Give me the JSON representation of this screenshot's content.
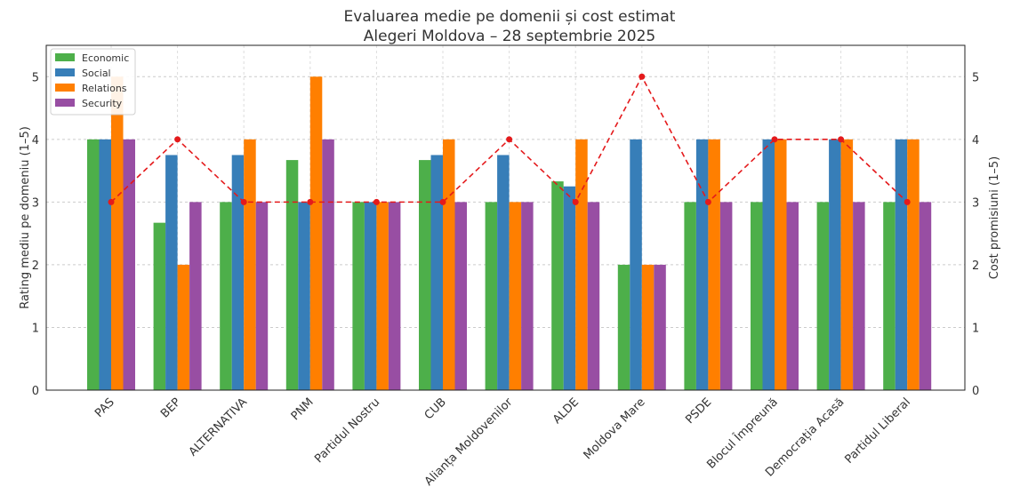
{
  "chart_data": {
    "type": "bar",
    "title": "Evaluarea medie pe domenii și cost estimat",
    "subtitle": "Alegeri Moldova – 28 septembrie 2025",
    "ylabel": "Rating mediu pe domeniu (1–5)",
    "y2label": "Cost promisiuni (1–5)",
    "ylim": [
      0,
      5.5
    ],
    "y2lim": [
      0,
      5.5
    ],
    "yticks": [
      "0",
      "1",
      "2",
      "3",
      "4",
      "5"
    ],
    "grid": true,
    "legend_position": "top-left",
    "categories": [
      "PAS",
      "BEP",
      "ALTERNATIVA",
      "PNM",
      "Partidul Nostru",
      "CUB",
      "Alianța Moldovenilor",
      "ALDE",
      "Moldova Mare",
      "PSDE",
      "Blocul Împreună",
      "Democrația Acasă",
      "Partidul Liberal"
    ],
    "series": [
      {
        "name": "Economic",
        "color": "#4daf4a",
        "values": [
          4,
          2.67,
          3,
          3.67,
          3,
          3.67,
          3,
          3.33,
          2,
          3,
          3,
          3,
          3
        ]
      },
      {
        "name": "Social",
        "color": "#377eb8",
        "values": [
          4,
          3.75,
          3.75,
          3,
          3,
          3.75,
          3.75,
          3.25,
          4,
          4,
          4,
          4,
          4
        ]
      },
      {
        "name": "Relations",
        "color": "#ff7f00",
        "values": [
          5,
          2,
          4,
          5,
          3,
          4,
          3,
          4,
          2,
          4,
          4,
          4,
          4
        ]
      },
      {
        "name": "Security",
        "color": "#984ea3",
        "values": [
          4,
          3,
          3,
          4,
          3,
          3,
          3,
          3,
          2,
          3,
          3,
          3,
          3
        ]
      }
    ],
    "cost": {
      "name": "Cost",
      "color": "#e41a1c",
      "values": [
        3,
        4,
        3,
        3,
        3,
        3,
        4,
        3,
        5,
        3,
        4,
        4,
        3
      ]
    }
  }
}
